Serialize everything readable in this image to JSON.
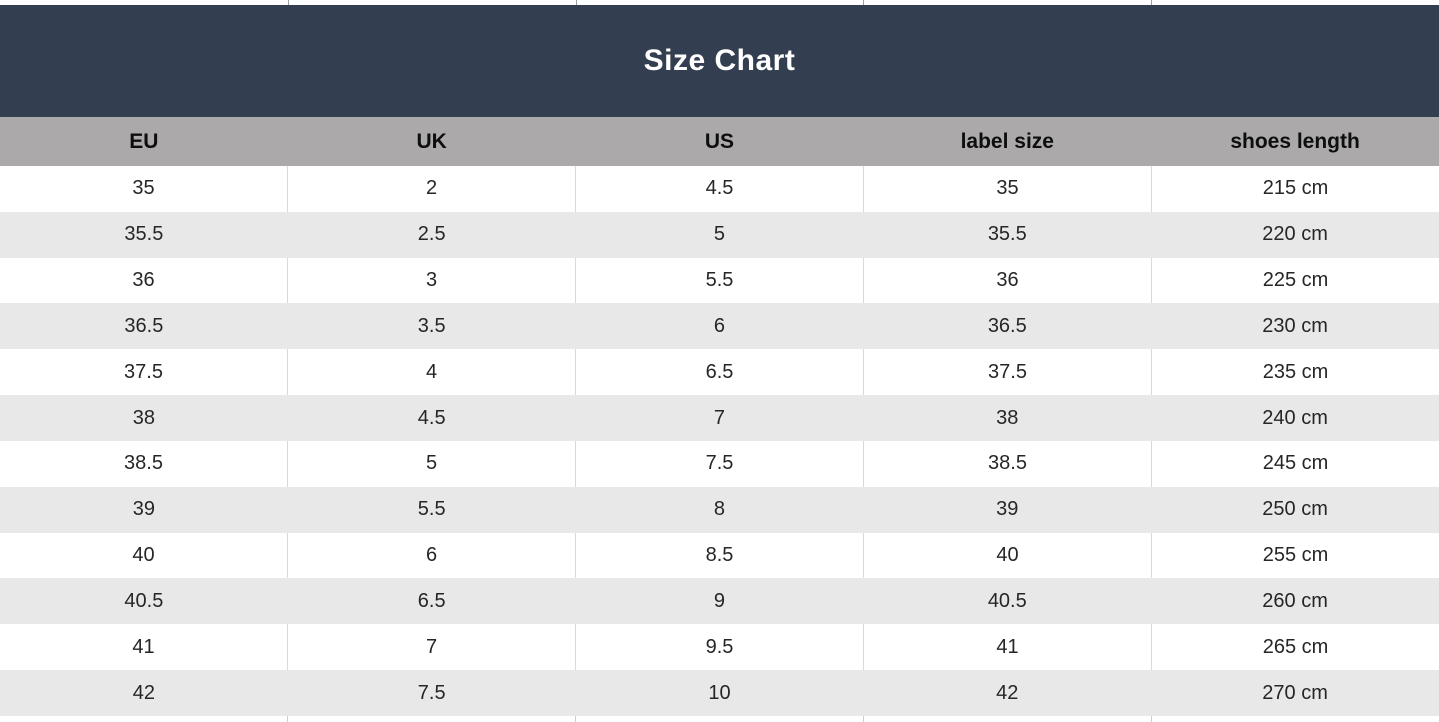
{
  "title": "Size Chart",
  "colors": {
    "banner_bg": "#333F50",
    "banner_text": "#FFFFFF",
    "header_bg": "#ABA9A9",
    "row_white": "#FFFFFF",
    "row_alt": "#E9E8E8",
    "cell_border": "#D9D9D9",
    "text": "#262626"
  },
  "chart_data": {
    "type": "table",
    "title": "Size Chart",
    "columns": [
      "EU",
      "UK",
      "US",
      "label size",
      "shoes length"
    ],
    "rows": [
      [
        "35",
        "2",
        "4.5",
        "35",
        "215 cm"
      ],
      [
        "35.5",
        "2.5",
        "5",
        "35.5",
        "220 cm"
      ],
      [
        "36",
        "3",
        "5.5",
        "36",
        "225 cm"
      ],
      [
        "36.5",
        "3.5",
        "6",
        "36.5",
        "230 cm"
      ],
      [
        "37.5",
        "4",
        "6.5",
        "37.5",
        "235 cm"
      ],
      [
        "38",
        "4.5",
        "7",
        "38",
        "240 cm"
      ],
      [
        "38.5",
        "5",
        "7.5",
        "38.5",
        "245 cm"
      ],
      [
        "39",
        "5.5",
        "8",
        "39",
        "250 cm"
      ],
      [
        "40",
        "6",
        "8.5",
        "40",
        "255 cm"
      ],
      [
        "40.5",
        "6.5",
        "9",
        "40.5",
        "260 cm"
      ],
      [
        "41",
        "7",
        "9.5",
        "41",
        "265 cm"
      ],
      [
        "42",
        "7.5",
        "10",
        "42",
        "270 cm"
      ]
    ]
  }
}
